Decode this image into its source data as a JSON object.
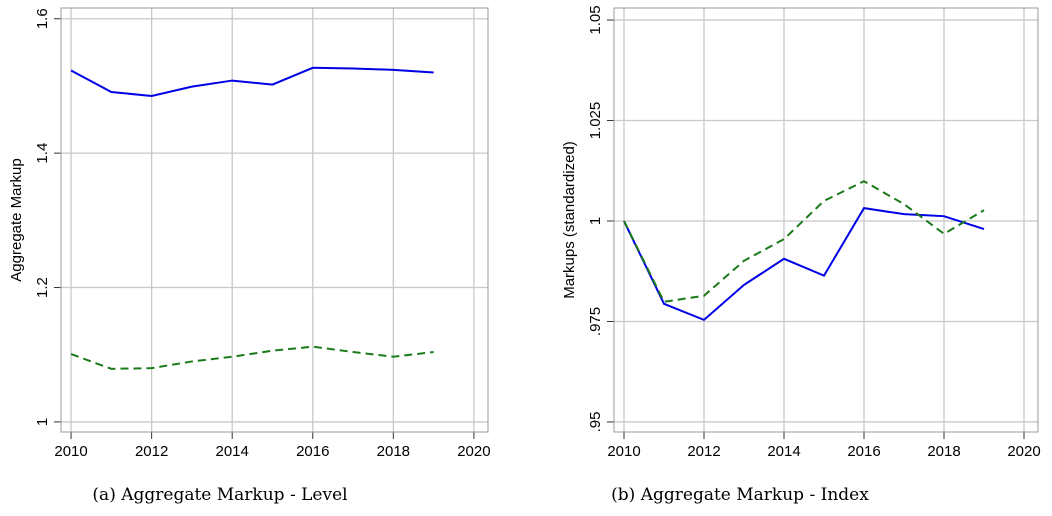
{
  "chart_data": [
    {
      "type": "line",
      "caption": "(a)  Aggregate Markup - Level",
      "y_label": "Aggregate Markup",
      "x": [
        2010,
        2011,
        2012,
        2013,
        2014,
        2015,
        2016,
        2017,
        2018,
        2019
      ],
      "series": [
        {
          "color": "#0000e6",
          "style": "solid",
          "values": [
            1.523,
            1.491,
            1.485,
            1.499,
            1.508,
            1.502,
            1.527,
            1.526,
            1.524,
            1.52
          ]
        },
        {
          "color": "#1a7a1a",
          "style": "dashed",
          "values": [
            1.101,
            1.079,
            1.08,
            1.09,
            1.097,
            1.106,
            1.112,
            1.104,
            1.097,
            1.104
          ]
        }
      ],
      "xlim": [
        2009.75,
        2020.35
      ],
      "xticks": [
        2010,
        2012,
        2014,
        2016,
        2018,
        2020
      ],
      "ylim": [
        0.985,
        1.616
      ],
      "yticks": [
        1,
        1.2,
        1.4,
        1.6
      ],
      "grid": true
    },
    {
      "type": "line",
      "caption": "(b)  Aggregate Markup - Index",
      "y_label": "Markups (standardized)",
      "x": [
        2010,
        2011,
        2012,
        2013,
        2014,
        2015,
        2016,
        2017,
        2018,
        2019
      ],
      "series": [
        {
          "color": "#0000e6",
          "style": "solid",
          "values": [
            1.0,
            0.9794,
            0.9754,
            0.9841,
            0.9906,
            0.9864,
            1.0032,
            1.0017,
            1.0012,
            0.998
          ]
        },
        {
          "color": "#1a7a1a",
          "style": "dashed",
          "values": [
            1.0,
            0.9799,
            0.9814,
            0.9901,
            0.9955,
            1.005,
            1.0099,
            1.0042,
            0.9968,
            1.0027
          ]
        }
      ],
      "xlim": [
        2009.75,
        2020.35
      ],
      "xticks": [
        2010,
        2012,
        2014,
        2016,
        2018,
        2020
      ],
      "ylim": [
        0.9475,
        1.053
      ],
      "yticks": [
        {
          "value": 0.95,
          "label": ".95"
        },
        {
          "value": 0.975,
          "label": ".975"
        },
        {
          "value": 1,
          "label": "1"
        },
        {
          "value": 1.025,
          "label": "1.025"
        },
        {
          "value": 1.05,
          "label": "1.05"
        }
      ],
      "grid": true
    }
  ]
}
